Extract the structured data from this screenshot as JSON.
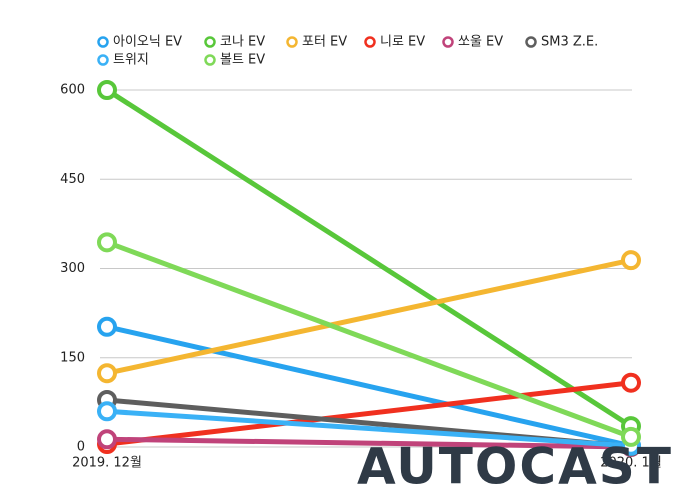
{
  "chart_data": {
    "type": "line",
    "categories": [
      "2019. 12월",
      "2020. 1월"
    ],
    "series": [
      {
        "name": "아이오닉 EV",
        "color": "#27a3ef",
        "values": [
          202,
          2
        ]
      },
      {
        "name": "코나 EV",
        "color": "#58c73a",
        "values": [
          600,
          35
        ]
      },
      {
        "name": "포터 EV",
        "color": "#f4b631",
        "values": [
          124,
          314
        ]
      },
      {
        "name": "니로 EV",
        "color": "#f0301f",
        "values": [
          5,
          108
        ]
      },
      {
        "name": "쏘울 EV",
        "color": "#c0437a",
        "values": [
          13,
          0
        ]
      },
      {
        "name": "SM3 Z.E.",
        "color": "#5e5e5e",
        "values": [
          79,
          1
        ]
      },
      {
        "name": "트위지",
        "color": "#3ab1f6",
        "values": [
          60,
          2
        ]
      },
      {
        "name": "볼트 EV",
        "color": "#7fd958",
        "values": [
          344,
          17
        ]
      }
    ],
    "ylim": [
      0,
      600
    ],
    "yticks": [
      0,
      150,
      300,
      450,
      600
    ],
    "grid": true
  },
  "watermark": "AUTOCAST"
}
